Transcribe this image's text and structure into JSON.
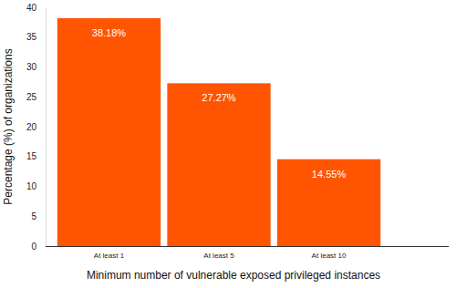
{
  "chart_data": {
    "type": "bar",
    "categories": [
      "At least 1",
      "At least 5",
      "At least 10"
    ],
    "values": [
      38.18,
      27.27,
      14.55
    ],
    "value_labels": [
      "38.18%",
      "27.27%",
      "14.55%"
    ],
    "data_labels": true,
    "color": "#ff5500",
    "x_label": "Minimum number of vulnerable exposed privileged instances",
    "y_label": "Percentage (%) of organizations",
    "ylim": [
      0,
      40
    ],
    "yticks": [
      0,
      5,
      10,
      15,
      20,
      25,
      30,
      35,
      40
    ],
    "grid": false
  }
}
